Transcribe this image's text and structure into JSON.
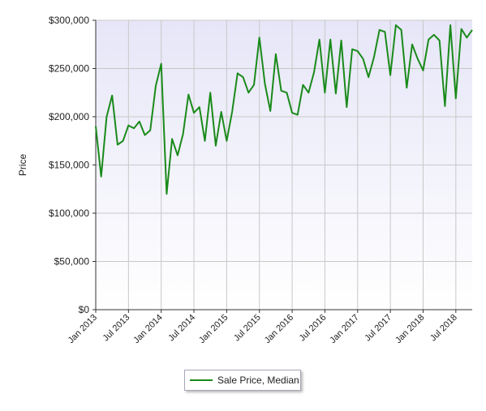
{
  "colors": {
    "line": "#1a8a1a",
    "plot_bg_top": "#e6e6f8",
    "plot_bg_bottom": "#ffffff",
    "grid": "#c8c8c8",
    "axis": "#333333"
  },
  "chart_data": {
    "type": "line",
    "title": "",
    "xlabel": "",
    "ylabel": "Price",
    "ylim": [
      0,
      300000
    ],
    "yticks": [
      0,
      50000,
      100000,
      150000,
      200000,
      250000,
      300000
    ],
    "ytick_labels": [
      "$0",
      "$50,000",
      "$100,000",
      "$150,000",
      "$200,000",
      "$250,000",
      "$300,000"
    ],
    "xticks": [
      "Jan 2013",
      "Jul 2013",
      "Jan 2014",
      "Jul 2014",
      "Jan 2015",
      "Jul 2015",
      "Jan 2016",
      "Jul 2016",
      "Jan 2017",
      "Jul 2017",
      "Jan 2018",
      "Jul 2018"
    ],
    "x": [
      "2013-01",
      "2013-02",
      "2013-03",
      "2013-04",
      "2013-05",
      "2013-06",
      "2013-07",
      "2013-08",
      "2013-09",
      "2013-10",
      "2013-11",
      "2013-12",
      "2014-01",
      "2014-02",
      "2014-03",
      "2014-04",
      "2014-05",
      "2014-06",
      "2014-07",
      "2014-08",
      "2014-09",
      "2014-10",
      "2014-11",
      "2014-12",
      "2015-01",
      "2015-02",
      "2015-03",
      "2015-04",
      "2015-05",
      "2015-06",
      "2015-07",
      "2015-08",
      "2015-09",
      "2015-10",
      "2015-11",
      "2015-12",
      "2016-01",
      "2016-02",
      "2016-03",
      "2016-04",
      "2016-05",
      "2016-06",
      "2016-07",
      "2016-08",
      "2016-09",
      "2016-10",
      "2016-11",
      "2016-12",
      "2017-01",
      "2017-02",
      "2017-03",
      "2017-04",
      "2017-05",
      "2017-06",
      "2017-07",
      "2017-08",
      "2017-09",
      "2017-10",
      "2017-11",
      "2017-12",
      "2018-01",
      "2018-02",
      "2018-03",
      "2018-04",
      "2018-05",
      "2018-06",
      "2018-07",
      "2018-08",
      "2018-09",
      "2018-10"
    ],
    "series": [
      {
        "name": "Sale Price, Median",
        "values": [
          190000,
          138000,
          200000,
          222000,
          171000,
          175000,
          191000,
          188000,
          195000,
          181000,
          186000,
          232000,
          255000,
          120000,
          177000,
          160000,
          182000,
          223000,
          204000,
          210000,
          175000,
          225000,
          170000,
          205000,
          175000,
          205000,
          245000,
          241000,
          225000,
          233000,
          282000,
          234000,
          206000,
          265000,
          227000,
          225000,
          204000,
          202000,
          233000,
          225000,
          246000,
          280000,
          225000,
          280000,
          224000,
          279000,
          210000,
          270000,
          268000,
          260000,
          241000,
          262000,
          290000,
          288000,
          243000,
          295000,
          290000,
          230000,
          275000,
          260000,
          248000,
          280000,
          285000,
          279000,
          211000,
          295000,
          219000,
          291000,
          282000,
          290000
        ]
      }
    ],
    "grid": true,
    "legend_position": "bottom-center"
  }
}
